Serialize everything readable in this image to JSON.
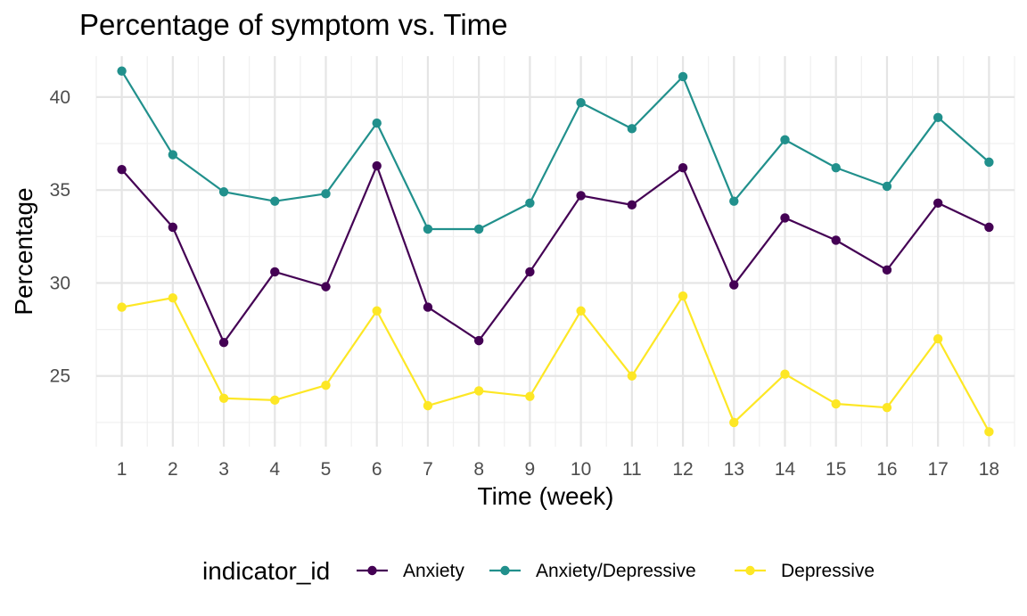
{
  "chart_data": {
    "type": "line",
    "title": "Percentage of symptom vs. Time",
    "xlabel": "Time (week)",
    "ylabel": "Percentage",
    "x": [
      1,
      2,
      3,
      4,
      5,
      6,
      7,
      8,
      9,
      10,
      11,
      12,
      13,
      14,
      15,
      16,
      17,
      18
    ],
    "x_tick_labels": [
      "1",
      "2",
      "3",
      "4",
      "5",
      "6",
      "7",
      "8",
      "9",
      "10",
      "11",
      "12",
      "13",
      "14",
      "15",
      "16",
      "17",
      "18"
    ],
    "y_ticks": [
      25,
      30,
      35,
      40
    ],
    "y_tick_labels": [
      "25",
      "30",
      "35",
      "40"
    ],
    "ylim": [
      21.2,
      42.2
    ],
    "xlim": [
      0.5,
      18.5
    ],
    "grid": true,
    "legend": {
      "title": "indicator_id",
      "position": "bottom"
    },
    "series": [
      {
        "name": "Anxiety",
        "color": "#440154",
        "values": [
          36.1,
          33.0,
          26.8,
          30.6,
          29.8,
          36.3,
          28.7,
          26.9,
          30.6,
          34.7,
          34.2,
          36.2,
          29.9,
          33.5,
          32.3,
          30.7,
          34.3,
          33.0
        ]
      },
      {
        "name": "Anxiety/Depressive",
        "color": "#21908C",
        "values": [
          41.4,
          36.9,
          34.9,
          34.4,
          34.8,
          38.6,
          32.9,
          32.9,
          34.3,
          39.7,
          38.3,
          41.1,
          34.4,
          37.7,
          36.2,
          35.2,
          38.9,
          36.5
        ]
      },
      {
        "name": "Depressive",
        "color": "#FDE725",
        "values": [
          28.7,
          29.2,
          23.8,
          23.7,
          24.5,
          28.5,
          23.4,
          24.2,
          23.9,
          28.5,
          25.0,
          29.3,
          22.5,
          25.1,
          23.5,
          23.3,
          27.0,
          22.0
        ]
      }
    ]
  }
}
